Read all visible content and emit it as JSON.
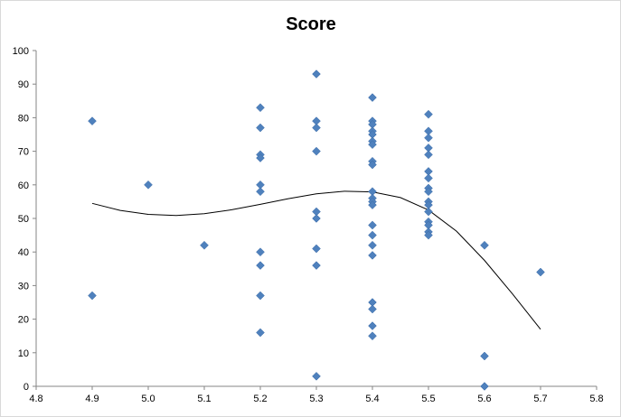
{
  "chart_data": {
    "type": "scatter",
    "title": "Score",
    "xlabel": "",
    "ylabel": "",
    "xlim": [
      4.8,
      5.8
    ],
    "ylim": [
      0,
      100
    ],
    "x_ticks": [
      "4.8",
      "4.9",
      "5.0",
      "5.1",
      "5.2",
      "5.3",
      "5.4",
      "5.5",
      "5.6",
      "5.7",
      "5.8"
    ],
    "y_ticks": [
      "0",
      "10",
      "20",
      "30",
      "40",
      "50",
      "60",
      "70",
      "80",
      "90",
      "100"
    ],
    "grid": false,
    "legend": "none",
    "marker_color": "#4f81bd",
    "trendline_color": "#000000",
    "series": [
      {
        "points": [
          [
            4.9,
            79
          ],
          [
            4.9,
            27
          ],
          [
            5.0,
            60
          ],
          [
            5.1,
            42
          ],
          [
            5.2,
            83
          ],
          [
            5.2,
            77
          ],
          [
            5.2,
            69
          ],
          [
            5.2,
            68
          ],
          [
            5.2,
            60
          ],
          [
            5.2,
            58
          ],
          [
            5.2,
            40
          ],
          [
            5.2,
            36
          ],
          [
            5.2,
            27
          ],
          [
            5.2,
            16
          ],
          [
            5.3,
            93
          ],
          [
            5.3,
            79
          ],
          [
            5.3,
            77
          ],
          [
            5.3,
            70
          ],
          [
            5.3,
            52
          ],
          [
            5.3,
            50
          ],
          [
            5.3,
            41
          ],
          [
            5.3,
            36
          ],
          [
            5.3,
            3
          ],
          [
            5.4,
            86
          ],
          [
            5.4,
            79
          ],
          [
            5.4,
            78
          ],
          [
            5.4,
            76
          ],
          [
            5.4,
            75
          ],
          [
            5.4,
            73
          ],
          [
            5.4,
            72
          ],
          [
            5.4,
            67
          ],
          [
            5.4,
            66
          ],
          [
            5.4,
            58
          ],
          [
            5.4,
            56
          ],
          [
            5.4,
            55
          ],
          [
            5.4,
            54
          ],
          [
            5.4,
            48
          ],
          [
            5.4,
            45
          ],
          [
            5.4,
            42
          ],
          [
            5.4,
            39
          ],
          [
            5.4,
            25
          ],
          [
            5.4,
            23
          ],
          [
            5.4,
            18
          ],
          [
            5.4,
            15
          ],
          [
            5.5,
            81
          ],
          [
            5.5,
            76
          ],
          [
            5.5,
            74
          ],
          [
            5.5,
            71
          ],
          [
            5.5,
            69
          ],
          [
            5.5,
            64
          ],
          [
            5.5,
            62
          ],
          [
            5.5,
            59
          ],
          [
            5.5,
            58
          ],
          [
            5.5,
            55
          ],
          [
            5.5,
            54
          ],
          [
            5.5,
            52
          ],
          [
            5.5,
            49
          ],
          [
            5.5,
            48
          ],
          [
            5.5,
            46
          ],
          [
            5.5,
            45
          ],
          [
            5.6,
            42
          ],
          [
            5.6,
            9
          ],
          [
            5.6,
            0
          ],
          [
            5.7,
            34
          ]
        ]
      }
    ],
    "trendline": {
      "type": "polynomial",
      "points": [
        [
          4.9,
          54.5
        ],
        [
          4.95,
          52.4
        ],
        [
          5.0,
          51.2
        ],
        [
          5.05,
          50.9
        ],
        [
          5.1,
          51.4
        ],
        [
          5.15,
          52.6
        ],
        [
          5.2,
          54.2
        ],
        [
          5.25,
          55.9
        ],
        [
          5.3,
          57.3
        ],
        [
          5.35,
          58.1
        ],
        [
          5.4,
          57.9
        ],
        [
          5.45,
          56.2
        ],
        [
          5.5,
          52.5
        ],
        [
          5.55,
          46.2
        ],
        [
          5.6,
          37.5
        ],
        [
          5.65,
          27.5
        ],
        [
          5.7,
          17.0
        ]
      ]
    }
  }
}
